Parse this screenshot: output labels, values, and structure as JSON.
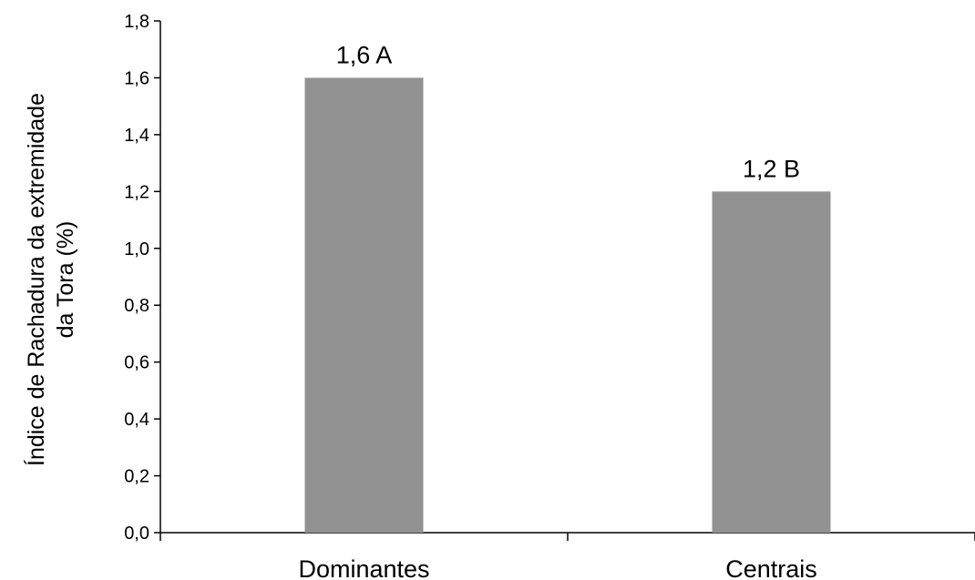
{
  "chart_data": {
    "type": "bar",
    "categories": [
      "Dominantes",
      "Centrais"
    ],
    "values": [
      1.6,
      1.2
    ],
    "data_labels": [
      "1,6 A",
      "1,2 B"
    ],
    "ylabel_lines": [
      "Índice de Rachadura da extremidade",
      "da Tora  (%)"
    ],
    "xlabel": "",
    "title": "",
    "ylim": [
      0,
      1.8
    ],
    "ytick_values": [
      0,
      0.2,
      0.4,
      0.6,
      0.8,
      1.0,
      1.2,
      1.4,
      1.6,
      1.8
    ],
    "ytick_labels": [
      "0,0",
      "0,2",
      "0,4",
      "0,6",
      "0,8",
      "1,0",
      "1,2",
      "1,4",
      "1,6",
      "1,8"
    ],
    "grid": false,
    "legend": "none",
    "bar_color": "#929292",
    "axis_color": "#000000"
  }
}
